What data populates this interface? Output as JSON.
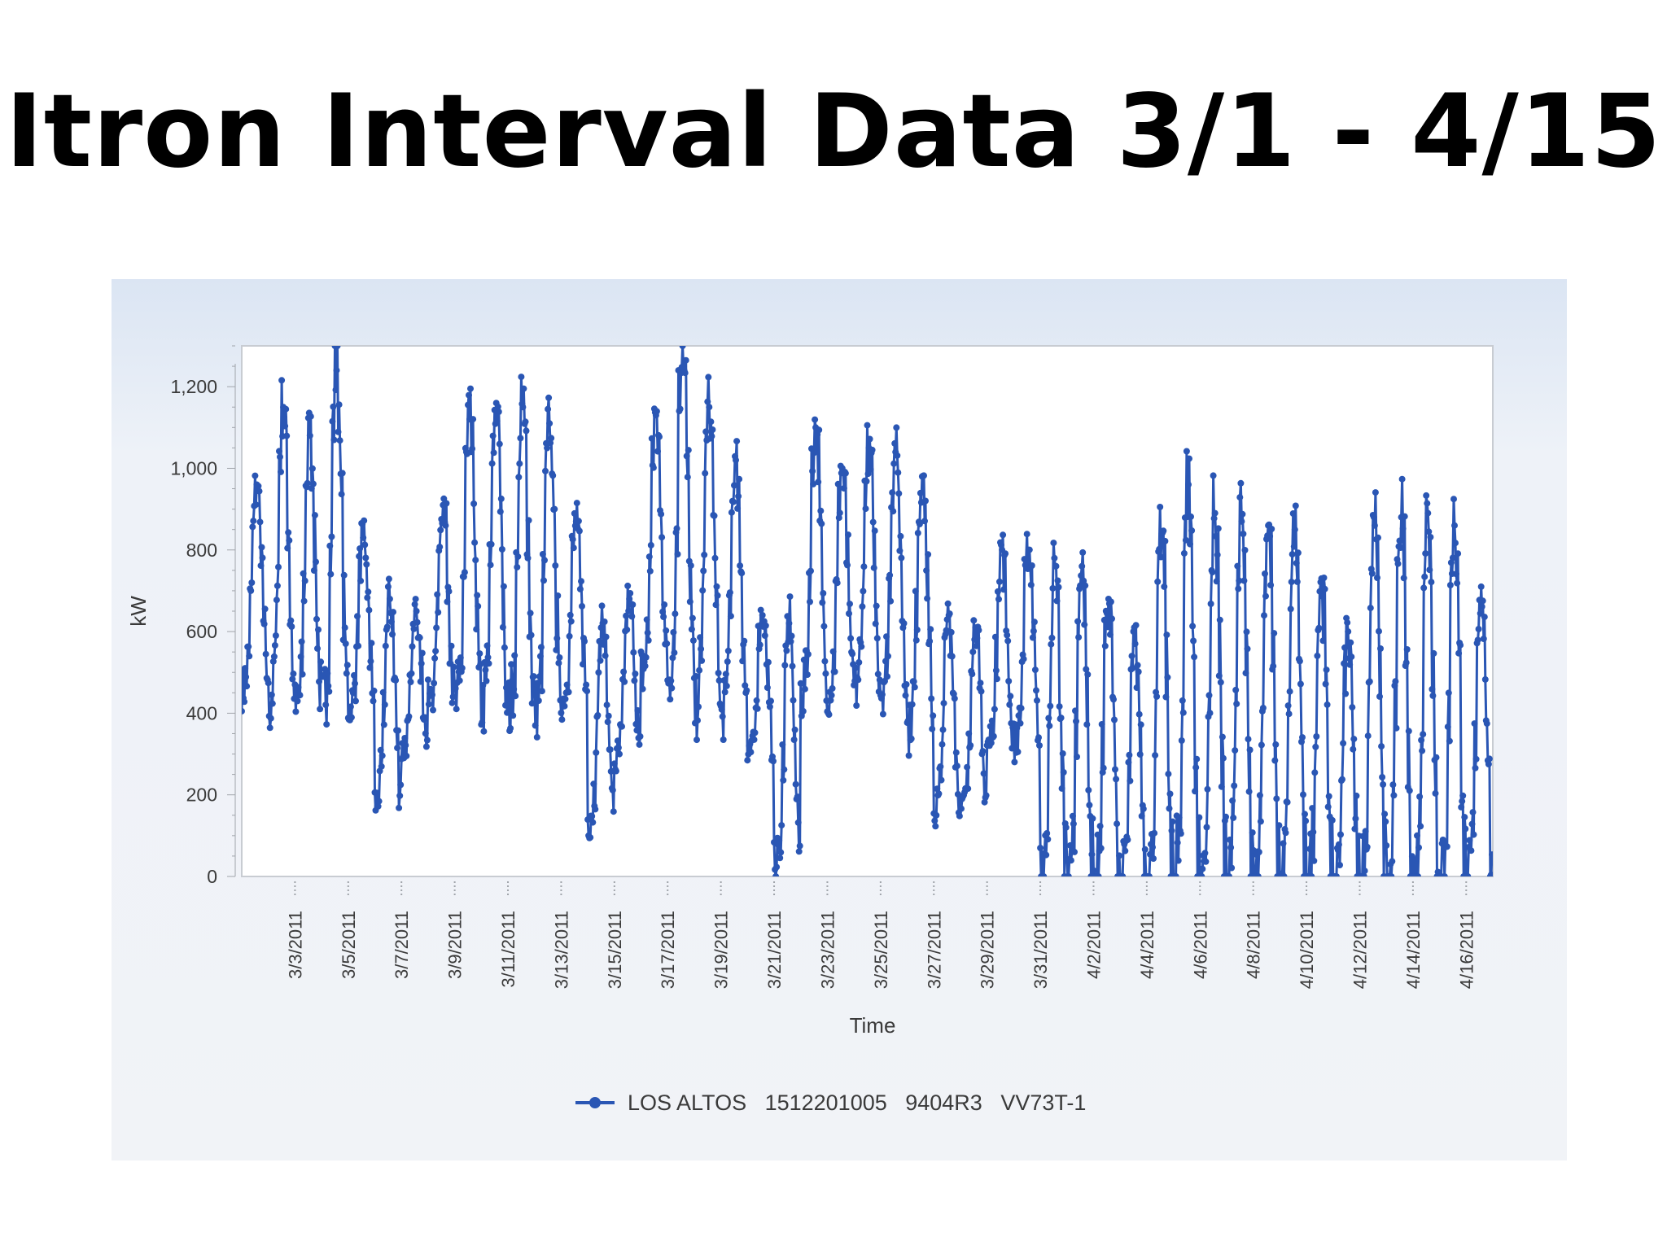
{
  "title": "Itron Interval Data 3/1 - 4/15",
  "chart_data": {
    "type": "line",
    "title": "",
    "xlabel": "Time",
    "ylabel": "kW",
    "ylim": [
      0,
      1300
    ],
    "xlim": [
      "2011-03-01",
      "2011-04-17"
    ],
    "yticks": [
      0,
      200,
      400,
      600,
      800,
      1000,
      1200
    ],
    "ytick_labels": [
      "0",
      "200",
      "400",
      "600",
      "800",
      "1,000",
      "1,200"
    ],
    "xtick_dates": [
      "2011-03-03",
      "2011-03-05",
      "2011-03-07",
      "2011-03-09",
      "2011-03-11",
      "2011-03-13",
      "2011-03-15",
      "2011-03-17",
      "2011-03-19",
      "2011-03-21",
      "2011-03-23",
      "2011-03-25",
      "2011-03-27",
      "2011-03-29",
      "2011-03-31",
      "2011-04-02",
      "2011-04-04",
      "2011-04-06",
      "2011-04-08",
      "2011-04-10",
      "2011-04-12",
      "2011-04-14",
      "2011-04-16"
    ],
    "xtick_labels": [
      "3/3/2011",
      "3/5/2011",
      "3/7/2011",
      "3/9/2011",
      "3/11/2011",
      "3/13/2011",
      "3/15/2011",
      "3/17/2011",
      "3/19/2011",
      "3/21/2011",
      "3/23/2011",
      "3/25/2011",
      "3/27/2011",
      "3/29/2011",
      "3/31/2011",
      "4/2/2011",
      "4/4/2011",
      "4/6/2011",
      "4/8/2011",
      "4/10/2011",
      "4/12/2011",
      "4/14/2011",
      "4/16/2011"
    ],
    "grid": false,
    "legend_position": "bottom",
    "series": [
      {
        "name": "LOS ALTOS   1512201005   9404R3   VV73T-1",
        "color": "#2a56b4",
        "daily": [
          {
            "date": "2011-03-01",
            "min": 460,
            "max": 960
          },
          {
            "date": "2011-03-02",
            "min": 420,
            "max": 1150
          },
          {
            "date": "2011-03-03",
            "min": 410,
            "max": 1080
          },
          {
            "date": "2011-03-04",
            "min": 420,
            "max": 1240
          },
          {
            "date": "2011-03-05",
            "min": 410,
            "max": 830
          },
          {
            "date": "2011-03-06",
            "min": 180,
            "max": 680
          },
          {
            "date": "2011-03-07",
            "min": 310,
            "max": 650
          },
          {
            "date": "2011-03-08",
            "min": 430,
            "max": 910
          },
          {
            "date": "2011-03-09",
            "min": 420,
            "max": 1120
          },
          {
            "date": "2011-03-10",
            "min": 420,
            "max": 1160
          },
          {
            "date": "2011-03-11",
            "min": 410,
            "max": 1150
          },
          {
            "date": "2011-03-12",
            "min": 410,
            "max": 1110
          },
          {
            "date": "2011-03-13",
            "min": 430,
            "max": 870
          },
          {
            "date": "2011-03-14",
            "min": 140,
            "max": 620
          },
          {
            "date": "2011-03-15",
            "min": 280,
            "max": 680
          },
          {
            "date": "2011-03-16",
            "min": 500,
            "max": 1130
          },
          {
            "date": "2011-03-17",
            "min": 500,
            "max": 1300
          },
          {
            "date": "2011-03-18",
            "min": 410,
            "max": 1150
          },
          {
            "date": "2011-03-19",
            "min": 400,
            "max": 1020
          },
          {
            "date": "2011-03-20",
            "min": 290,
            "max": 640
          },
          {
            "date": "2011-03-21",
            "min": 20,
            "max": 620
          },
          {
            "date": "2011-03-22",
            "min": 450,
            "max": 1100
          },
          {
            "date": "2011-03-23",
            "min": 450,
            "max": 1000
          },
          {
            "date": "2011-03-24",
            "min": 460,
            "max": 1050
          },
          {
            "date": "2011-03-25",
            "min": 460,
            "max": 1040
          },
          {
            "date": "2011-03-26",
            "min": 360,
            "max": 980
          },
          {
            "date": "2011-03-27",
            "min": 160,
            "max": 640
          },
          {
            "date": "2011-03-28",
            "min": 160,
            "max": 610
          },
          {
            "date": "2011-03-29",
            "min": 320,
            "max": 800
          },
          {
            "date": "2011-03-30",
            "min": 330,
            "max": 800
          },
          {
            "date": "2011-03-31",
            "min": 0,
            "max": 760
          },
          {
            "date": "2011-04-01",
            "min": 0,
            "max": 760
          },
          {
            "date": "2011-04-02",
            "min": 0,
            "max": 680
          },
          {
            "date": "2011-04-03",
            "min": 0,
            "max": 570
          },
          {
            "date": "2011-04-04",
            "min": 0,
            "max": 840
          },
          {
            "date": "2011-04-05",
            "min": 0,
            "max": 960
          },
          {
            "date": "2011-04-06",
            "min": 0,
            "max": 890
          },
          {
            "date": "2011-04-07",
            "min": 0,
            "max": 870
          },
          {
            "date": "2011-04-08",
            "min": 0,
            "max": 860
          },
          {
            "date": "2011-04-09",
            "min": 0,
            "max": 850
          },
          {
            "date": "2011-04-10",
            "min": 0,
            "max": 730
          },
          {
            "date": "2011-04-11",
            "min": 0,
            "max": 600
          },
          {
            "date": "2011-04-12",
            "min": 0,
            "max": 860
          },
          {
            "date": "2011-04-13",
            "min": 0,
            "max": 880
          },
          {
            "date": "2011-04-14",
            "min": 0,
            "max": 890
          },
          {
            "date": "2011-04-15",
            "min": 0,
            "max": 860
          },
          {
            "date": "2011-04-16",
            "min": 0,
            "max": 710
          }
        ]
      }
    ]
  }
}
